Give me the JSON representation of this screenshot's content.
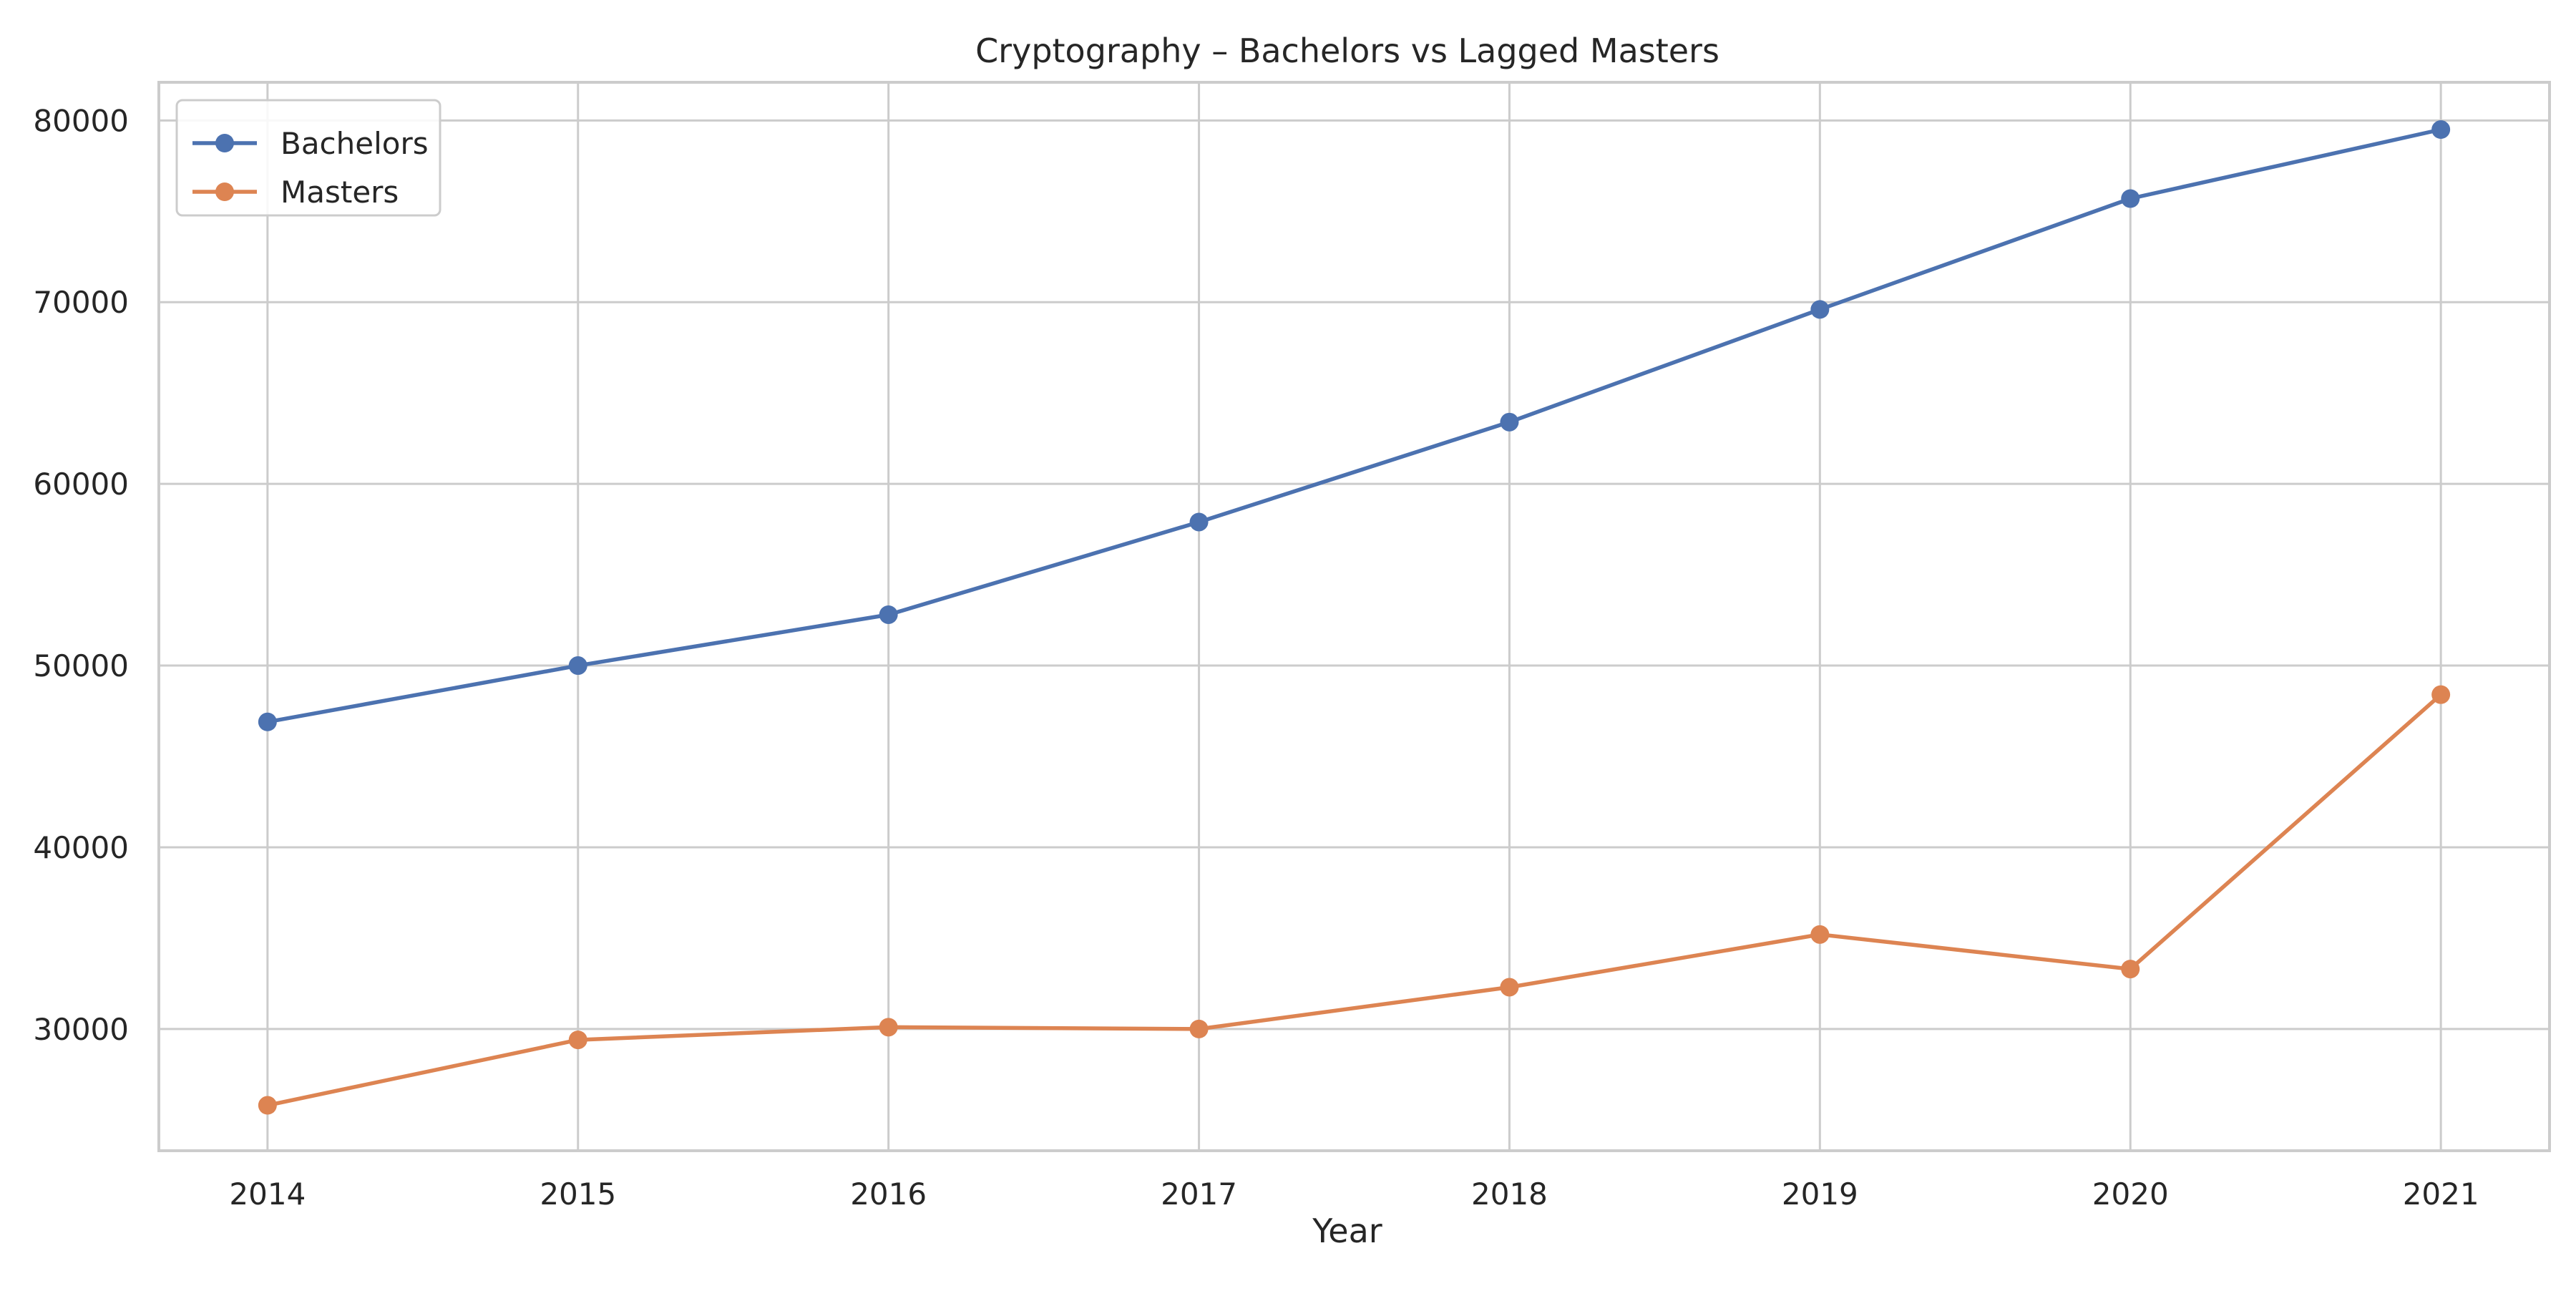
{
  "chart_data": {
    "type": "line",
    "title": "Cryptography – Bachelors vs Lagged Masters",
    "xlabel": "Year",
    "ylabel": "",
    "x": [
      2014,
      2015,
      2016,
      2017,
      2018,
      2019,
      2020,
      2021
    ],
    "series": [
      {
        "name": "Bachelors",
        "color": "#4c72b0",
        "values": [
          46900,
          50000,
          52800,
          57900,
          63400,
          69600,
          75700,
          79500
        ]
      },
      {
        "name": "Masters",
        "color": "#dd8452",
        "values": [
          25800,
          29400,
          30100,
          30000,
          32300,
          35200,
          33300,
          48400
        ]
      }
    ],
    "xlim": [
      2013.65,
      2021.35
    ],
    "ylim": [
      23300,
      82100
    ],
    "yticks": [
      30000,
      40000,
      50000,
      60000,
      70000,
      80000
    ],
    "xticks": [
      2014,
      2015,
      2016,
      2017,
      2018,
      2019,
      2020,
      2021
    ],
    "grid": true,
    "legend_position": "top-left",
    "style": {
      "grid_color": "#cccccc",
      "spine_color": "#cccccc",
      "background": "#ffffff"
    }
  }
}
